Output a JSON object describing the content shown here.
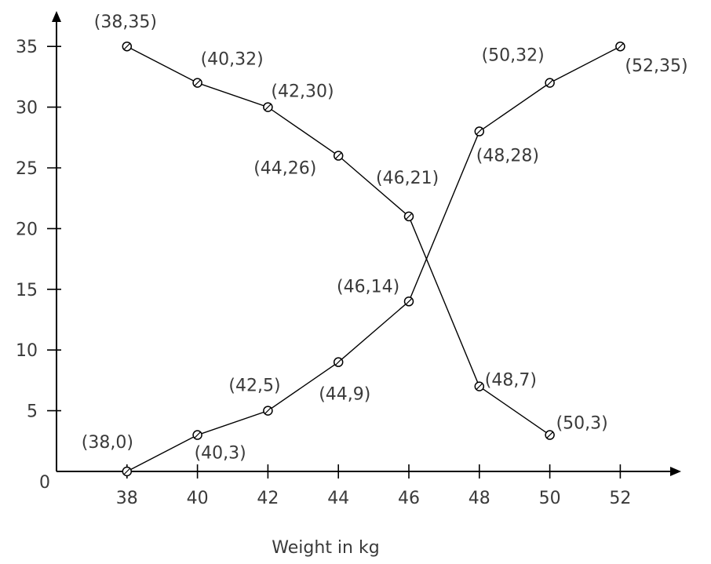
{
  "chart_data": {
    "type": "line",
    "title": "",
    "xlabel": "Weight in kg",
    "ylabel": "",
    "xlim": [
      36,
      54
    ],
    "ylim": [
      0,
      35
    ],
    "x_ticks": [
      "38",
      "40",
      "42",
      "44",
      "46",
      "48",
      "50",
      "52"
    ],
    "y_ticks": [
      "5",
      "10",
      "15",
      "20",
      "25",
      "30",
      "35"
    ],
    "origin_label": "0",
    "grid": false,
    "series": [
      {
        "points": [
          [
            38,
            35
          ],
          [
            40,
            32
          ],
          [
            42,
            30
          ],
          [
            44,
            26
          ],
          [
            46,
            21
          ],
          [
            48,
            7
          ],
          [
            50,
            3
          ]
        ],
        "labels": [
          "(38,35)",
          "(40,32)",
          "(42,30)",
          "(44,26)",
          "(46,21)",
          "(48,7)",
          "(50,3)"
        ]
      },
      {
        "points": [
          [
            38,
            0
          ],
          [
            40,
            3
          ],
          [
            42,
            5
          ],
          [
            44,
            9
          ],
          [
            46,
            14
          ],
          [
            48,
            28
          ],
          [
            50,
            32
          ],
          [
            52,
            35
          ]
        ],
        "labels": [
          "(38,0)",
          "(40,3)",
          "(42,5)",
          "(44,9)",
          "(46,14)",
          "(48,28)",
          "(50,32)",
          "(52,35)"
        ]
      }
    ]
  }
}
